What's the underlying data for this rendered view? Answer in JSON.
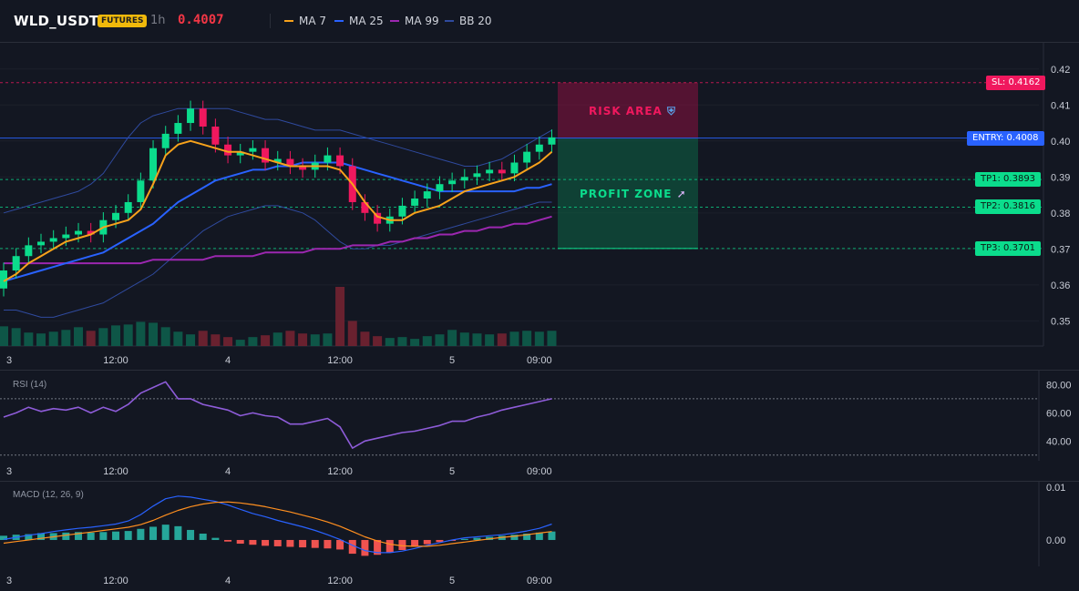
{
  "header": {
    "symbol": "WLD_USDT",
    "badge": "FUTURES",
    "timeframe": "1h",
    "price": "0.4007",
    "legend": [
      {
        "label": "MA 7",
        "color": "#f7a21b"
      },
      {
        "label": "MA 25",
        "color": "#2962ff"
      },
      {
        "label": "MA 99",
        "color": "#9c27b0"
      },
      {
        "label": "BB 20",
        "color": "#2f4a9e"
      }
    ]
  },
  "levels": {
    "sl": {
      "label": "SL: 0.4162",
      "price": 0.4162,
      "color": "#f0185e"
    },
    "entry": {
      "label": "ENTRY: 0.4008",
      "price": 0.4008,
      "color": "#2962ff"
    },
    "tp1": {
      "label": "TP1: 0.3893",
      "price": 0.3893,
      "color": "#0bdc8c"
    },
    "tp2": {
      "label": "TP2: 0.3816",
      "price": 0.3816,
      "color": "#0bdc8c"
    },
    "tp3": {
      "label": "TP3: 0.3701",
      "price": 0.3701,
      "color": "#0bdc8c"
    }
  },
  "zones": {
    "risk_label": "RISK AREA",
    "profit_label": "PROFIT ZONE"
  },
  "chart_data": [
    {
      "type": "candlestick",
      "ylim": [
        0.343,
        0.4245
      ],
      "y_ticks": [
        "0.42",
        "0.41",
        "0.40",
        "0.39",
        "0.38",
        "0.37",
        "0.36",
        "0.35"
      ],
      "y_tick_values": [
        0.42,
        0.41,
        0.4,
        0.39,
        0.38,
        0.37,
        0.36,
        0.35
      ],
      "x_ticks": [
        "3",
        "12:00",
        "4",
        "12:00",
        "5",
        "09:00"
      ],
      "x_tick_index": [
        0,
        9,
        18,
        27,
        36,
        43
      ],
      "close": [
        0.364,
        0.368,
        0.371,
        0.372,
        0.373,
        0.374,
        0.375,
        0.374,
        0.378,
        0.38,
        0.383,
        0.389,
        0.398,
        0.402,
        0.405,
        0.409,
        0.404,
        0.399,
        0.396,
        0.397,
        0.398,
        0.394,
        0.395,
        0.393,
        0.392,
        0.394,
        0.396,
        0.393,
        0.383,
        0.38,
        0.377,
        0.379,
        0.382,
        0.384,
        0.386,
        0.388,
        0.389,
        0.39,
        0.391,
        0.392,
        0.391,
        0.394,
        0.397,
        0.399,
        0.401
      ],
      "volume": [
        22,
        20,
        15,
        14,
        16,
        18,
        21,
        17,
        20,
        23,
        24,
        27,
        26,
        21,
        16,
        13,
        17,
        13,
        10,
        7,
        10,
        12,
        15,
        17,
        14,
        13,
        14,
        66,
        28,
        16,
        11,
        9,
        10,
        8,
        11,
        13,
        18,
        15,
        14,
        13,
        14,
        16,
        17,
        16,
        17
      ],
      "ma7": [
        0.361,
        0.363,
        0.366,
        0.368,
        0.37,
        0.372,
        0.373,
        0.374,
        0.376,
        0.377,
        0.378,
        0.381,
        0.388,
        0.396,
        0.399,
        0.4,
        0.399,
        0.398,
        0.397,
        0.397,
        0.396,
        0.395,
        0.394,
        0.393,
        0.393,
        0.393,
        0.393,
        0.392,
        0.388,
        0.383,
        0.379,
        0.378,
        0.378,
        0.38,
        0.381,
        0.382,
        0.384,
        0.386,
        0.387,
        0.388,
        0.389,
        0.39,
        0.392,
        0.394,
        0.397
      ],
      "ma25": [
        0.361,
        0.362,
        0.363,
        0.364,
        0.365,
        0.366,
        0.367,
        0.368,
        0.369,
        0.371,
        0.373,
        0.375,
        0.377,
        0.38,
        0.383,
        0.385,
        0.387,
        0.389,
        0.39,
        0.391,
        0.392,
        0.392,
        0.393,
        0.393,
        0.394,
        0.394,
        0.394,
        0.394,
        0.393,
        0.392,
        0.391,
        0.39,
        0.389,
        0.388,
        0.387,
        0.386,
        0.386,
        0.386,
        0.386,
        0.386,
        0.386,
        0.386,
        0.387,
        0.387,
        0.388
      ],
      "ma99": [
        0.366,
        0.366,
        0.366,
        0.366,
        0.366,
        0.366,
        0.366,
        0.366,
        0.366,
        0.366,
        0.366,
        0.366,
        0.367,
        0.367,
        0.367,
        0.367,
        0.367,
        0.368,
        0.368,
        0.368,
        0.368,
        0.369,
        0.369,
        0.369,
        0.369,
        0.37,
        0.37,
        0.37,
        0.371,
        0.371,
        0.371,
        0.372,
        0.372,
        0.373,
        0.373,
        0.374,
        0.374,
        0.375,
        0.375,
        0.376,
        0.376,
        0.377,
        0.377,
        0.378,
        0.379
      ],
      "bb_upper": [
        0.38,
        0.381,
        0.382,
        0.383,
        0.384,
        0.385,
        0.386,
        0.388,
        0.391,
        0.396,
        0.401,
        0.405,
        0.407,
        0.408,
        0.409,
        0.409,
        0.409,
        0.409,
        0.409,
        0.408,
        0.407,
        0.406,
        0.406,
        0.405,
        0.404,
        0.403,
        0.403,
        0.403,
        0.402,
        0.401,
        0.4,
        0.399,
        0.398,
        0.397,
        0.396,
        0.395,
        0.394,
        0.393,
        0.393,
        0.394,
        0.395,
        0.397,
        0.399,
        0.401,
        0.403
      ],
      "bb_lower": [
        0.353,
        0.353,
        0.352,
        0.351,
        0.351,
        0.352,
        0.353,
        0.354,
        0.355,
        0.357,
        0.359,
        0.361,
        0.363,
        0.366,
        0.369,
        0.372,
        0.375,
        0.377,
        0.379,
        0.38,
        0.381,
        0.382,
        0.382,
        0.381,
        0.38,
        0.378,
        0.375,
        0.372,
        0.37,
        0.37,
        0.371,
        0.371,
        0.372,
        0.373,
        0.374,
        0.375,
        0.376,
        0.377,
        0.378,
        0.379,
        0.38,
        0.381,
        0.382,
        0.383,
        0.383
      ]
    },
    {
      "type": "line",
      "title": "RSI (14)",
      "ylim": [
        26,
        88
      ],
      "y_ticks": [
        "80.00",
        "60.00",
        "40.00"
      ],
      "y_tick_values": [
        80,
        60,
        40
      ],
      "levels": [
        70,
        30
      ],
      "x_ticks": [
        "3",
        "12:00",
        "4",
        "12:00",
        "5",
        "09:00"
      ],
      "values": [
        57,
        60,
        64,
        61,
        63,
        62,
        64,
        60,
        64,
        61,
        66,
        74,
        78,
        82,
        70,
        70,
        66,
        64,
        62,
        58,
        60,
        58,
        57,
        52,
        52,
        54,
        56,
        50,
        35,
        40,
        42,
        44,
        46,
        47,
        49,
        51,
        54,
        54,
        57,
        59,
        62,
        64,
        66,
        68,
        70
      ]
    },
    {
      "type": "bar+line",
      "title": "MACD (12, 26, 9)",
      "ylim": [
        -0.005,
        0.0105
      ],
      "y_ticks": [
        "0.01",
        "0.00"
      ],
      "y_tick_values": [
        0.01,
        0.0
      ],
      "x_ticks": [
        "3",
        "12:00",
        "4",
        "12:00",
        "5",
        "09:00"
      ],
      "histogram": [
        0.0008,
        0.001,
        0.0011,
        0.0013,
        0.0013,
        0.0014,
        0.0015,
        0.0014,
        0.0015,
        0.0016,
        0.0017,
        0.0021,
        0.0025,
        0.0029,
        0.0026,
        0.0019,
        0.0012,
        0.0004,
        -0.0003,
        -0.0007,
        -0.0009,
        -0.0011,
        -0.0012,
        -0.0013,
        -0.0014,
        -0.0015,
        -0.0016,
        -0.0018,
        -0.0026,
        -0.003,
        -0.0028,
        -0.0024,
        -0.0019,
        -0.0013,
        -0.0008,
        -0.0004,
        -0.0001,
        0.0002,
        0.0004,
        0.0006,
        0.0008,
        0.001,
        0.0012,
        0.0014,
        0.0016
      ],
      "macd": [
        0.0001,
        0.0005,
        0.0009,
        0.0012,
        0.0016,
        0.0019,
        0.0022,
        0.0024,
        0.0027,
        0.003,
        0.0036,
        0.0048,
        0.0064,
        0.0078,
        0.0083,
        0.0081,
        0.0077,
        0.0073,
        0.0066,
        0.0058,
        0.005,
        0.0044,
        0.0037,
        0.0031,
        0.0025,
        0.0018,
        0.001,
        0.0001,
        -0.001,
        -0.002,
        -0.0024,
        -0.0024,
        -0.0021,
        -0.0016,
        -0.001,
        -0.0005,
        0.0,
        0.0004,
        0.0006,
        0.0008,
        0.001,
        0.0013,
        0.0017,
        0.0022,
        0.003
      ],
      "signal": [
        -0.0006,
        -0.0003,
        0.0,
        0.0003,
        0.0006,
        0.0009,
        0.0012,
        0.0015,
        0.0018,
        0.0021,
        0.0024,
        0.0029,
        0.0037,
        0.0047,
        0.0056,
        0.0063,
        0.0068,
        0.0071,
        0.0072,
        0.007,
        0.0067,
        0.0063,
        0.0058,
        0.0053,
        0.0047,
        0.0041,
        0.0034,
        0.0026,
        0.0016,
        0.0006,
        -0.0002,
        -0.0008,
        -0.0011,
        -0.0012,
        -0.0012,
        -0.001,
        -0.0007,
        -0.0004,
        -0.0001,
        0.0002,
        0.0005,
        0.0007,
        0.001,
        0.0013,
        0.0016
      ]
    }
  ]
}
